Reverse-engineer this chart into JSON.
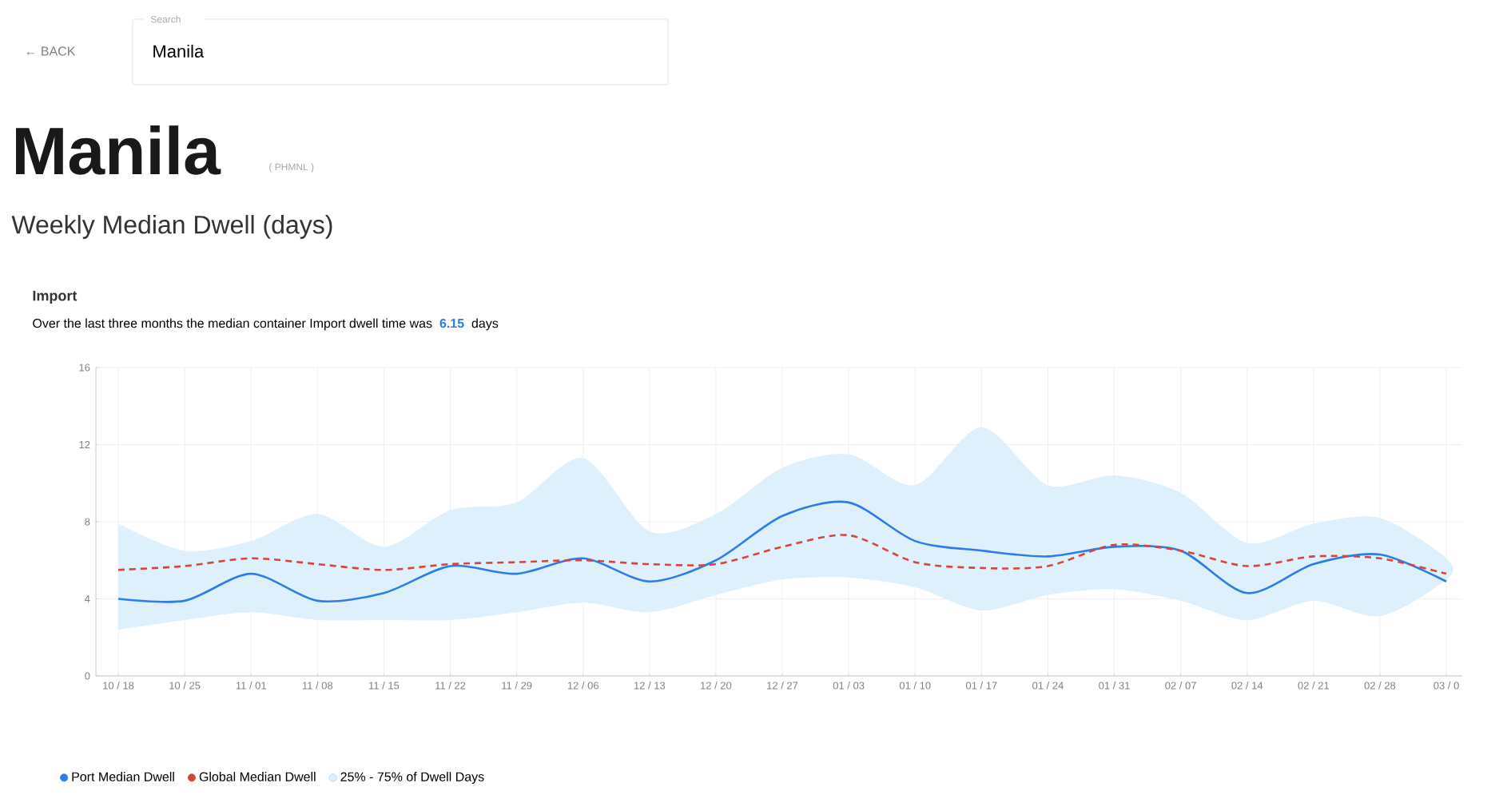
{
  "chart_data": {
    "type": "line",
    "title": "Manila",
    "subtitle": "Weekly Median Dwell (days)",
    "annotations": [
      "← BACK",
      "Search",
      "Manila",
      "( PHMNL )",
      "Import",
      "Over the last three months the median container Import dwell time was",
      "6.15",
      "days",
      "25% - 75% of Dwell Days"
    ],
    "categories": [
      "10 / 18",
      "10 / 25",
      "11 / 01",
      "11 / 08",
      "11 / 15",
      "11 / 22",
      "11 / 29",
      "12 / 06",
      "12 / 13",
      "12 / 20",
      "12 / 27",
      "01 / 03",
      "01 / 10",
      "01 / 17",
      "01 / 24",
      "01 / 31",
      "02 / 07",
      "02 / 14",
      "02 / 21",
      "02 / 28",
      "03 / 0"
    ],
    "series": [
      {
        "name": "Port Median Dwell",
        "color": "#2b7de9",
        "line_style": "solid",
        "values": [
          4.0,
          3.9,
          5.3,
          3.9,
          4.3,
          5.7,
          5.3,
          6.1,
          4.9,
          6.0,
          8.3,
          9.0,
          7.0,
          6.5,
          6.2,
          6.7,
          6.5,
          4.3,
          5.8,
          6.3,
          4.9
        ],
        "lower": [
          2.4,
          2.9,
          3.3,
          2.9,
          2.9,
          2.9,
          3.3,
          3.8,
          3.3,
          4.2,
          5.0,
          5.1,
          4.6,
          3.4,
          4.2,
          4.5,
          3.9,
          2.9,
          3.9,
          3.1,
          5.0
        ],
        "upper": [
          7.9,
          6.5,
          7.0,
          8.4,
          6.7,
          8.6,
          9.0,
          11.3,
          7.5,
          8.4,
          10.8,
          11.5,
          9.9,
          12.9,
          9.9,
          10.4,
          9.5,
          6.9,
          7.9,
          8.2,
          6.1
        ]
      },
      {
        "name": "Global Median Dwell",
        "color": "#d9443a",
        "line_style": "dashed",
        "values": [
          5.5,
          5.7,
          6.1,
          5.8,
          5.5,
          5.8,
          5.9,
          6.0,
          5.8,
          5.8,
          6.7,
          7.3,
          5.9,
          5.6,
          5.7,
          6.8,
          6.5,
          5.7,
          6.2,
          6.1,
          5.3
        ]
      }
    ],
    "ylim": [
      0,
      16
    ],
    "yticks": [
      0,
      4,
      8,
      12,
      16
    ],
    "grid": true,
    "legend": "bottom"
  }
}
